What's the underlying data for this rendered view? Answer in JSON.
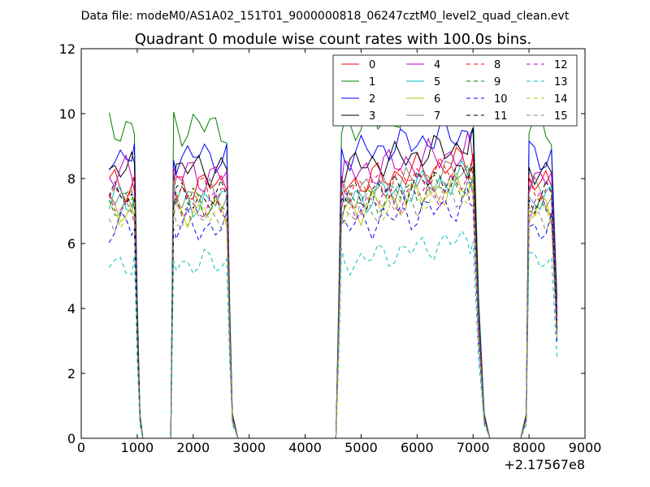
{
  "header": {
    "data_file": "Data file: modeM0/AS1A02_151T01_9000000818_06247cztM0_level2_quad_clean.evt"
  },
  "chart_data": {
    "type": "line",
    "title": "Quadrant 0 module wise count rates with 100.0s bins.",
    "xlabel": "",
    "ylabel": "",
    "x_offset_label": "+2.17567e8",
    "xlim": [
      0,
      9000
    ],
    "ylim": [
      0,
      12
    ],
    "x_ticks": [
      0,
      1000,
      2000,
      3000,
      4000,
      5000,
      6000,
      7000,
      8000,
      9000
    ],
    "x_tick_labels": [
      "0",
      "1000",
      "2000",
      "3000",
      "4000",
      "5000",
      "6000",
      "7000",
      "8000",
      "9000"
    ],
    "y_ticks": [
      0,
      2,
      4,
      6,
      8,
      10,
      12
    ],
    "y_tick_labels": [
      "0",
      "2",
      "4",
      "6",
      "8",
      "10",
      "12"
    ],
    "grid": false,
    "legend_position": "top-right",
    "legend_columns": 4,
    "base_times": [
      500,
      600,
      700,
      800,
      900,
      950,
      1000,
      1050,
      1100,
      1200,
      1300,
      1400,
      1500,
      1600,
      1650,
      1700,
      1800,
      1900,
      2000,
      2100,
      2200,
      2300,
      2400,
      2500,
      2600,
      2650,
      2700,
      2800,
      2900,
      3000,
      3500,
      4000,
      4500,
      4550,
      4600,
      4650,
      4700,
      4800,
      4900,
      5000,
      5100,
      5200,
      5300,
      5400,
      5500,
      5600,
      5700,
      5800,
      5900,
      6000,
      6100,
      6200,
      6300,
      6400,
      6500,
      6600,
      6700,
      6800,
      6900,
      6950,
      7000,
      7100,
      7200,
      7300,
      7500,
      7700,
      7850,
      7950,
      8000,
      8100,
      8200,
      8300,
      8400,
      8500
    ],
    "gaps": [
      [
        1100,
        1600
      ],
      [
        2700,
        4600
      ],
      [
        7200,
        7950
      ]
    ],
    "series": [
      {
        "name": "0",
        "color": "#ff0000",
        "dashed": false,
        "level": 7.8,
        "amp": 0.35,
        "mult": 1.0
      },
      {
        "name": "1",
        "color": "#008000",
        "dashed": false,
        "level": 9.6,
        "amp": 0.4,
        "mult": 1.0
      },
      {
        "name": "2",
        "color": "#0000ff",
        "dashed": false,
        "level": 8.7,
        "amp": 0.35,
        "mult": 1.0
      },
      {
        "name": "3",
        "color": "#000000",
        "dashed": false,
        "level": 8.3,
        "amp": 0.35,
        "mult": 1.0
      },
      {
        "name": "4",
        "color": "#bf00bf",
        "dashed": false,
        "level": 8.1,
        "amp": 0.4,
        "mult": 1.0
      },
      {
        "name": "5",
        "color": "#00bfbf",
        "dashed": false,
        "level": 7.3,
        "amp": 0.35,
        "mult": 1.0
      },
      {
        "name": "6",
        "color": "#bfbf00",
        "dashed": false,
        "level": 7.0,
        "amp": 0.35,
        "mult": 1.0
      },
      {
        "name": "7",
        "color": "#808080",
        "dashed": false,
        "level": 7.5,
        "amp": 0.35,
        "mult": 1.0
      },
      {
        "name": "8",
        "color": "#ff0000",
        "dashed": true,
        "level": 7.6,
        "amp": 0.35,
        "mult": 1.0
      },
      {
        "name": "9",
        "color": "#008000",
        "dashed": true,
        "level": 7.2,
        "amp": 0.35,
        "mult": 1.0
      },
      {
        "name": "10",
        "color": "#0000ff",
        "dashed": true,
        "level": 6.5,
        "amp": 0.35,
        "mult": 1.0
      },
      {
        "name": "11",
        "color": "#000000",
        "dashed": true,
        "level": 7.4,
        "amp": 0.35,
        "mult": 1.0
      },
      {
        "name": "12",
        "color": "#bf00bf",
        "dashed": true,
        "level": 7.1,
        "amp": 0.35,
        "mult": 1.0
      },
      {
        "name": "13",
        "color": "#00bfbf",
        "dashed": true,
        "level": 5.4,
        "amp": 0.3,
        "mult": 1.0
      },
      {
        "name": "14",
        "color": "#bfbf00",
        "dashed": true,
        "level": 7.0,
        "amp": 0.35,
        "mult": 1.0
      },
      {
        "name": "15",
        "color": "#808080",
        "dashed": true,
        "level": 6.9,
        "amp": 0.35,
        "mult": 1.0
      }
    ]
  }
}
